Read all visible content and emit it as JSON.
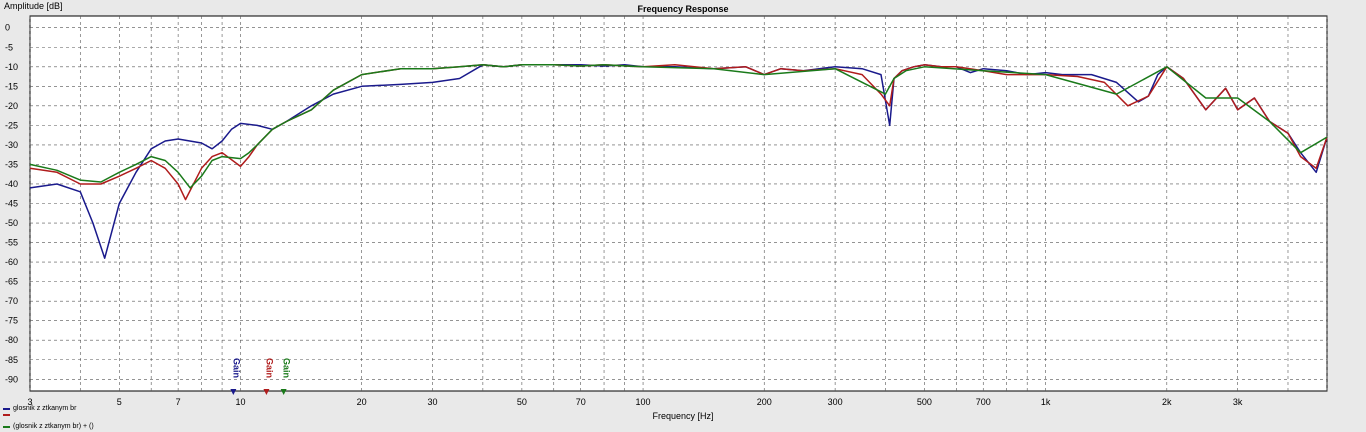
{
  "chart_data": {
    "type": "line",
    "title": "Frequency Response",
    "xlabel": "Frequency [Hz]",
    "ylabel": "Amplitude [dB]",
    "xscale": "log",
    "xlim": [
      3,
      5000
    ],
    "ylim": [
      -93,
      3
    ],
    "grid": true,
    "x_ticks": [
      {
        "value": 3,
        "label": "3"
      },
      {
        "value": 5,
        "label": "5"
      },
      {
        "value": 7,
        "label": "7"
      },
      {
        "value": 10,
        "label": "10"
      },
      {
        "value": 20,
        "label": "20"
      },
      {
        "value": 30,
        "label": "30"
      },
      {
        "value": 50,
        "label": "50"
      },
      {
        "value": 70,
        "label": "70"
      },
      {
        "value": 100,
        "label": "100"
      },
      {
        "value": 200,
        "label": "200"
      },
      {
        "value": 300,
        "label": "300"
      },
      {
        "value": 500,
        "label": "500"
      },
      {
        "value": 700,
        "label": "700"
      },
      {
        "value": 1000,
        "label": "1k"
      },
      {
        "value": 2000,
        "label": "2k"
      },
      {
        "value": 3000,
        "label": "3k"
      }
    ],
    "y_ticks": [
      0,
      -5,
      -10,
      -15,
      -20,
      -25,
      -30,
      -35,
      -40,
      -45,
      -50,
      -55,
      -60,
      -65,
      -70,
      -75,
      -80,
      -85,
      -90
    ],
    "legend_placement": "bottom-left",
    "series": [
      {
        "name": "glosnik z ztkanym br",
        "color": "#1a1a8c",
        "x": [
          3,
          3.5,
          4,
          4.3,
          4.6,
          5,
          5.5,
          6,
          6.5,
          7,
          8,
          8.5,
          9,
          9.5,
          10,
          11,
          12,
          13,
          15,
          17,
          20,
          25,
          30,
          35,
          40,
          45,
          50,
          60,
          70,
          80,
          90,
          100,
          120,
          150,
          180,
          200,
          220,
          250,
          300,
          350,
          390,
          410,
          420,
          440,
          470,
          500,
          550,
          600,
          650,
          700,
          800,
          900,
          1000,
          1100,
          1300,
          1500,
          1700,
          1800,
          1900,
          2000,
          2200,
          2500,
          2800,
          3000,
          3300,
          3600,
          4000,
          4300,
          4700,
          5000
        ],
        "y": [
          -41,
          -40,
          -42,
          -50,
          -59,
          -45,
          -37,
          -31,
          -29,
          -28.5,
          -29.5,
          -31,
          -29,
          -26,
          -24.5,
          -25,
          -26,
          -24,
          -20,
          -17,
          -15,
          -14.5,
          -14,
          -13,
          -9.5,
          -10,
          -9.5,
          -9.5,
          -9.5,
          -9.8,
          -9.5,
          -10,
          -10,
          -10.5,
          -10,
          -12,
          -10.5,
          -11,
          -10,
          -10.5,
          -12,
          -25,
          -13,
          -11,
          -10,
          -9.5,
          -10,
          -10,
          -11.5,
          -10.5,
          -11,
          -12,
          -11.5,
          -12,
          -12,
          -14,
          -19,
          -17.5,
          -12,
          -10,
          -13,
          -21,
          -15.5,
          -21,
          -18,
          -24,
          -27,
          -32,
          -37,
          -28
        ]
      },
      {
        "name": "",
        "color": "#b01c1c",
        "x": [
          3,
          3.5,
          4,
          4.5,
          5,
          5.5,
          6,
          6.5,
          7,
          7.3,
          8,
          8.5,
          9,
          10,
          10.5,
          11,
          12,
          13,
          15,
          17,
          20,
          25,
          30,
          35,
          40,
          45,
          50,
          60,
          70,
          80,
          100,
          120,
          150,
          180,
          200,
          220,
          250,
          300,
          350,
          390,
          410,
          420,
          440,
          470,
          500,
          550,
          600,
          700,
          800,
          1000,
          1200,
          1400,
          1600,
          1800,
          2000,
          2200,
          2500,
          2800,
          3000,
          3300,
          3600,
          4000,
          4300,
          4700,
          5000
        ],
        "y": [
          -36,
          -37,
          -40,
          -40,
          -38,
          -36,
          -34,
          -36,
          -40,
          -44,
          -36,
          -33,
          -32,
          -35.5,
          -33,
          -30,
          -26,
          -24,
          -21,
          -16,
          -12,
          -10.5,
          -10.5,
          -10,
          -9.5,
          -10,
          -9.5,
          -9.5,
          -9.8,
          -9.5,
          -10,
          -9.5,
          -10.5,
          -10,
          -12,
          -10.5,
          -11,
          -10.5,
          -12,
          -17,
          -20,
          -13,
          -11,
          -10,
          -9.5,
          -10,
          -10,
          -11,
          -12,
          -12,
          -12.5,
          -14,
          -20,
          -17.5,
          -10,
          -13,
          -21,
          -15.5,
          -21,
          -18,
          -24,
          -27,
          -33,
          -36,
          -28
        ]
      },
      {
        "name": "(glosnik z ztkanym br) + ()",
        "color": "#1a7a1a",
        "x": [
          3,
          3.5,
          4,
          4.5,
          5,
          5.5,
          6,
          6.5,
          7,
          7.5,
          8,
          8.5,
          9,
          10,
          10.5,
          11,
          12,
          13,
          15,
          17,
          20,
          25,
          30,
          35,
          40,
          45,
          50,
          60,
          70,
          80,
          100,
          150,
          200,
          300,
          400,
          420,
          450,
          500,
          700,
          1000,
          1500,
          2000,
          2500,
          3000,
          3600,
          4300,
          5000
        ],
        "y": [
          -35,
          -36.5,
          -39,
          -39.5,
          -37,
          -35,
          -33,
          -34,
          -37,
          -41,
          -38,
          -34,
          -33,
          -33.5,
          -32,
          -30,
          -26,
          -24,
          -21,
          -16,
          -12,
          -10.5,
          -10.5,
          -10,
          -9.5,
          -10,
          -9.5,
          -9.5,
          -9.8,
          -9.5,
          -10,
          -10.5,
          -12,
          -10.5,
          -17,
          -13,
          -11,
          -10,
          -11,
          -12,
          -17,
          -10,
          -18,
          -18,
          -24,
          -32,
          -28
        ]
      }
    ],
    "markers": [
      {
        "label": "Gain",
        "x": 9.6,
        "color": "#1a1a8c"
      },
      {
        "label": "Gain",
        "x": 11.6,
        "color": "#b01c1c"
      },
      {
        "label": "Gain",
        "x": 12.8,
        "color": "#1a7a1a"
      }
    ]
  }
}
